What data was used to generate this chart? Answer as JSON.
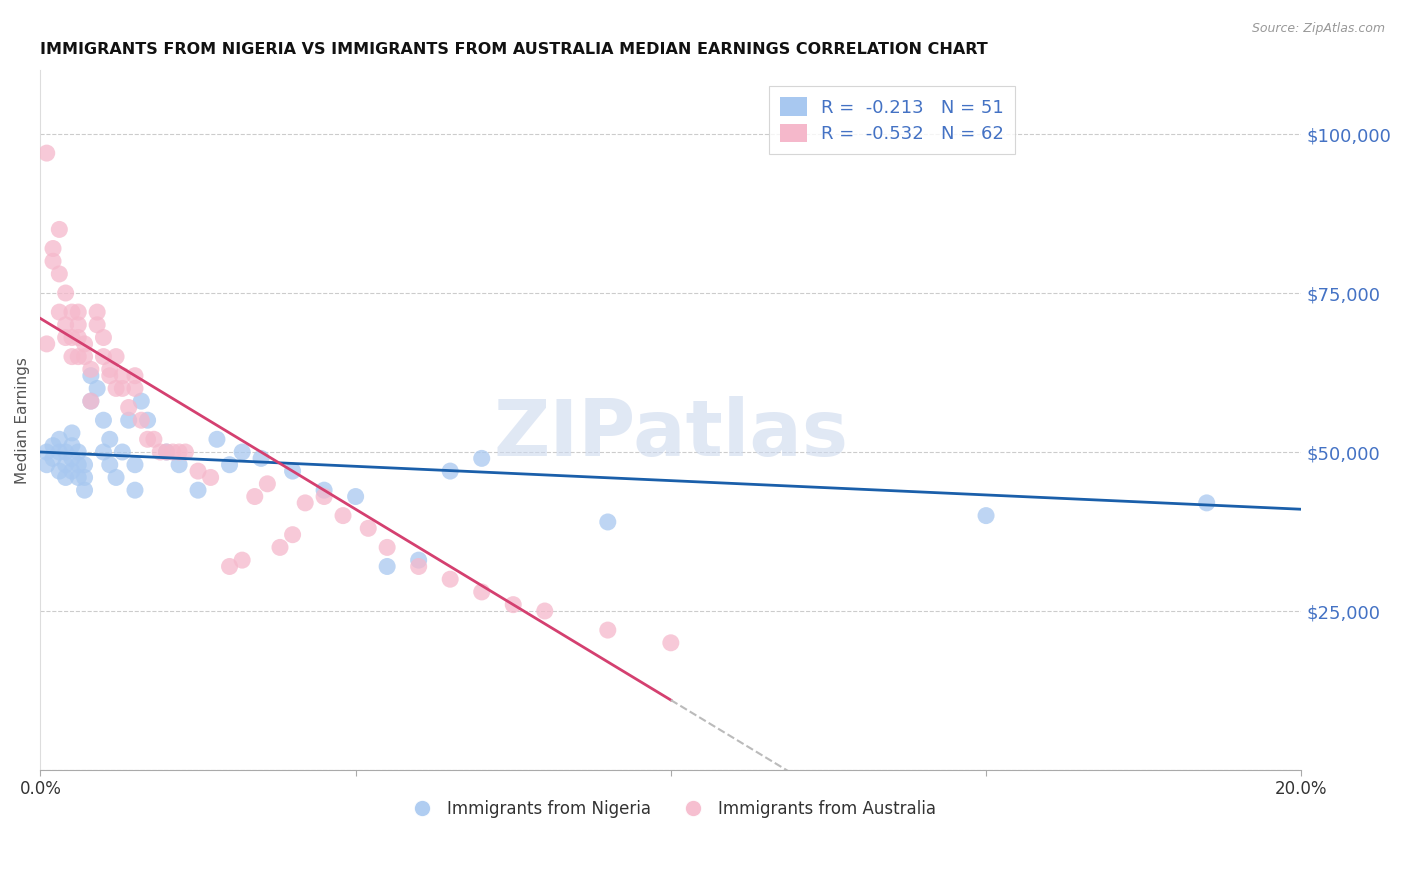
{
  "title": "IMMIGRANTS FROM NIGERIA VS IMMIGRANTS FROM AUSTRALIA MEDIAN EARNINGS CORRELATION CHART",
  "source": "Source: ZipAtlas.com",
  "ylabel": "Median Earnings",
  "xlim": [
    0.0,
    0.2
  ],
  "ylim": [
    0,
    110000
  ],
  "yticks": [
    0,
    25000,
    50000,
    75000,
    100000
  ],
  "ytick_labels": [
    "",
    "$25,000",
    "$50,000",
    "$75,000",
    "$100,000"
  ],
  "xticks": [
    0.0,
    0.05,
    0.1,
    0.15,
    0.2
  ],
  "xtick_labels": [
    "0.0%",
    "",
    "",
    "",
    "20.0%"
  ],
  "nigeria_color": "#a8c8f0",
  "australia_color": "#f5b8cb",
  "nigeria_line_color": "#1a5faa",
  "australia_line_color": "#d44070",
  "grid_color": "#cccccc",
  "background_color": "#ffffff",
  "watermark": "ZIPatlas",
  "nigeria_R": -0.213,
  "nigeria_N": 51,
  "australia_R": -0.532,
  "australia_N": 62,
  "nigeria_intercept": 50000,
  "nigeria_slope": -45000,
  "australia_intercept": 71000,
  "australia_slope": -600000,
  "nigeria_x": [
    0.001,
    0.001,
    0.002,
    0.002,
    0.003,
    0.003,
    0.003,
    0.004,
    0.004,
    0.004,
    0.005,
    0.005,
    0.005,
    0.005,
    0.006,
    0.006,
    0.006,
    0.007,
    0.007,
    0.007,
    0.008,
    0.008,
    0.009,
    0.01,
    0.01,
    0.011,
    0.011,
    0.012,
    0.013,
    0.014,
    0.015,
    0.015,
    0.016,
    0.017,
    0.02,
    0.022,
    0.025,
    0.028,
    0.03,
    0.032,
    0.035,
    0.04,
    0.045,
    0.05,
    0.055,
    0.06,
    0.065,
    0.07,
    0.09,
    0.15,
    0.185
  ],
  "nigeria_y": [
    48000,
    50000,
    49000,
    51000,
    47000,
    50000,
    52000,
    48000,
    46000,
    50000,
    47000,
    49000,
    51000,
    53000,
    46000,
    48000,
    50000,
    44000,
    46000,
    48000,
    62000,
    58000,
    60000,
    55000,
    50000,
    52000,
    48000,
    46000,
    50000,
    55000,
    48000,
    44000,
    58000,
    55000,
    50000,
    48000,
    44000,
    52000,
    48000,
    50000,
    49000,
    47000,
    44000,
    43000,
    32000,
    33000,
    47000,
    49000,
    39000,
    40000,
    42000
  ],
  "australia_x": [
    0.001,
    0.001,
    0.002,
    0.002,
    0.003,
    0.003,
    0.003,
    0.004,
    0.004,
    0.004,
    0.005,
    0.005,
    0.005,
    0.006,
    0.006,
    0.006,
    0.006,
    0.007,
    0.007,
    0.008,
    0.008,
    0.009,
    0.009,
    0.01,
    0.01,
    0.011,
    0.011,
    0.012,
    0.012,
    0.013,
    0.013,
    0.014,
    0.015,
    0.015,
    0.016,
    0.017,
    0.018,
    0.019,
    0.02,
    0.021,
    0.022,
    0.023,
    0.025,
    0.027,
    0.03,
    0.032,
    0.034,
    0.036,
    0.038,
    0.04,
    0.042,
    0.045,
    0.048,
    0.052,
    0.055,
    0.06,
    0.065,
    0.07,
    0.075,
    0.08,
    0.09,
    0.1
  ],
  "australia_y": [
    97000,
    67000,
    80000,
    82000,
    78000,
    72000,
    85000,
    70000,
    68000,
    75000,
    72000,
    68000,
    65000,
    70000,
    65000,
    72000,
    68000,
    67000,
    65000,
    63000,
    58000,
    70000,
    72000,
    65000,
    68000,
    62000,
    63000,
    65000,
    60000,
    60000,
    62000,
    57000,
    60000,
    62000,
    55000,
    52000,
    52000,
    50000,
    50000,
    50000,
    50000,
    50000,
    47000,
    46000,
    32000,
    33000,
    43000,
    45000,
    35000,
    37000,
    42000,
    43000,
    40000,
    38000,
    35000,
    32000,
    30000,
    28000,
    26000,
    25000,
    22000,
    20000
  ]
}
